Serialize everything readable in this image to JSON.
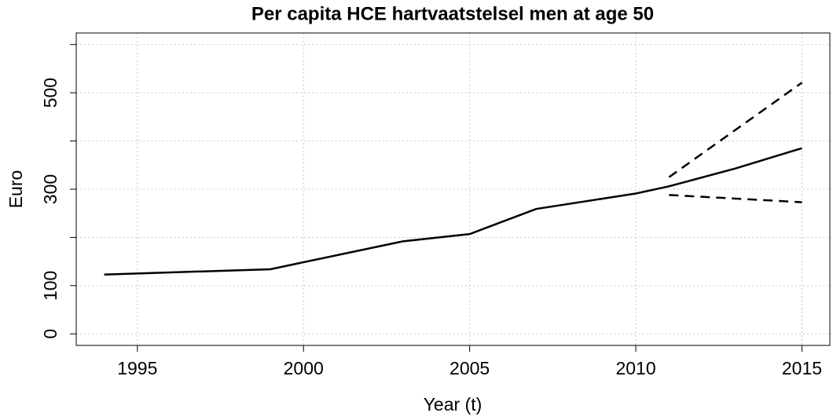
{
  "chart_data": {
    "type": "line",
    "title": "Per capita HCE hartvaatstelsel men at age 50",
    "x_label": "Year (t)",
    "y_label": "Euro",
    "xlim": [
      1993.16,
      2015.84
    ],
    "ylim": [
      -24,
      624
    ],
    "xticks": [
      1995,
      2000,
      2005,
      2010,
      2015
    ],
    "yticks": [
      0,
      100,
      300,
      500
    ],
    "yticks_unlabeled": [
      200,
      400,
      600
    ],
    "grid": true,
    "series": [
      {
        "color": "#000000",
        "dashed": false,
        "x": [
          1994,
          1999,
          2003,
          2005,
          2007,
          2010,
          2011,
          2013,
          2015
        ],
        "values": [
          123,
          134,
          192,
          207,
          259,
          291,
          306,
          343,
          385
        ]
      },
      {
        "color": "#000000",
        "dashed": true,
        "x": [
          2011,
          2015
        ],
        "values": [
          325,
          521
        ]
      },
      {
        "color": "#000000",
        "dashed": true,
        "x": [
          2011,
          2015
        ],
        "values": [
          288,
          273
        ]
      }
    ]
  }
}
